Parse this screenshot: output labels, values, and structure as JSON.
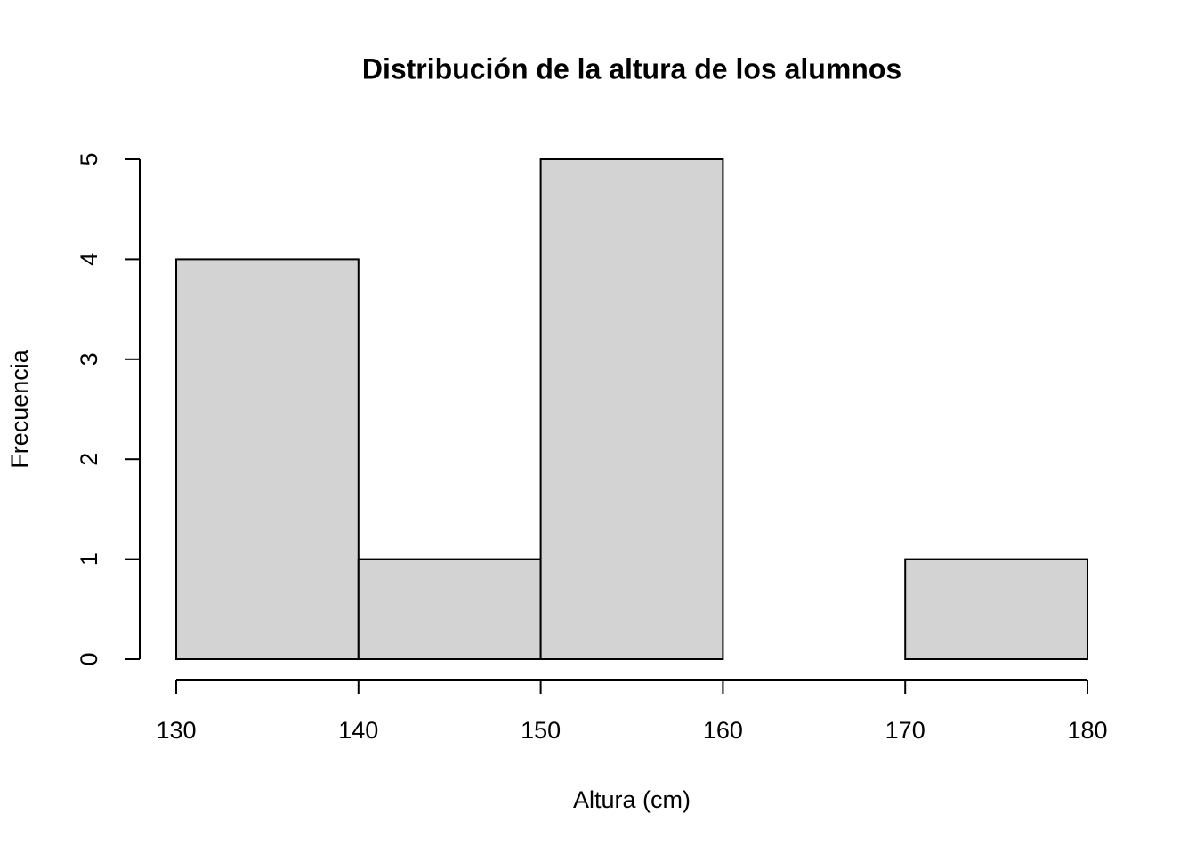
{
  "chart_data": {
    "type": "histogram",
    "title": "Distribución de la altura de los alumnos",
    "x_label": "Altura (cm)",
    "y_label": "Frecuencia",
    "bins": [
      130,
      140,
      150,
      160,
      170,
      180
    ],
    "values": [
      4,
      1,
      5,
      0,
      1
    ],
    "color": "#d3d3d3",
    "xlim": [
      130,
      180
    ],
    "xticks": [
      130,
      140,
      150,
      160,
      170,
      180
    ],
    "ylim": [
      0,
      5
    ],
    "yticks": [
      0,
      1,
      2,
      3,
      4,
      5
    ],
    "grid": false
  }
}
